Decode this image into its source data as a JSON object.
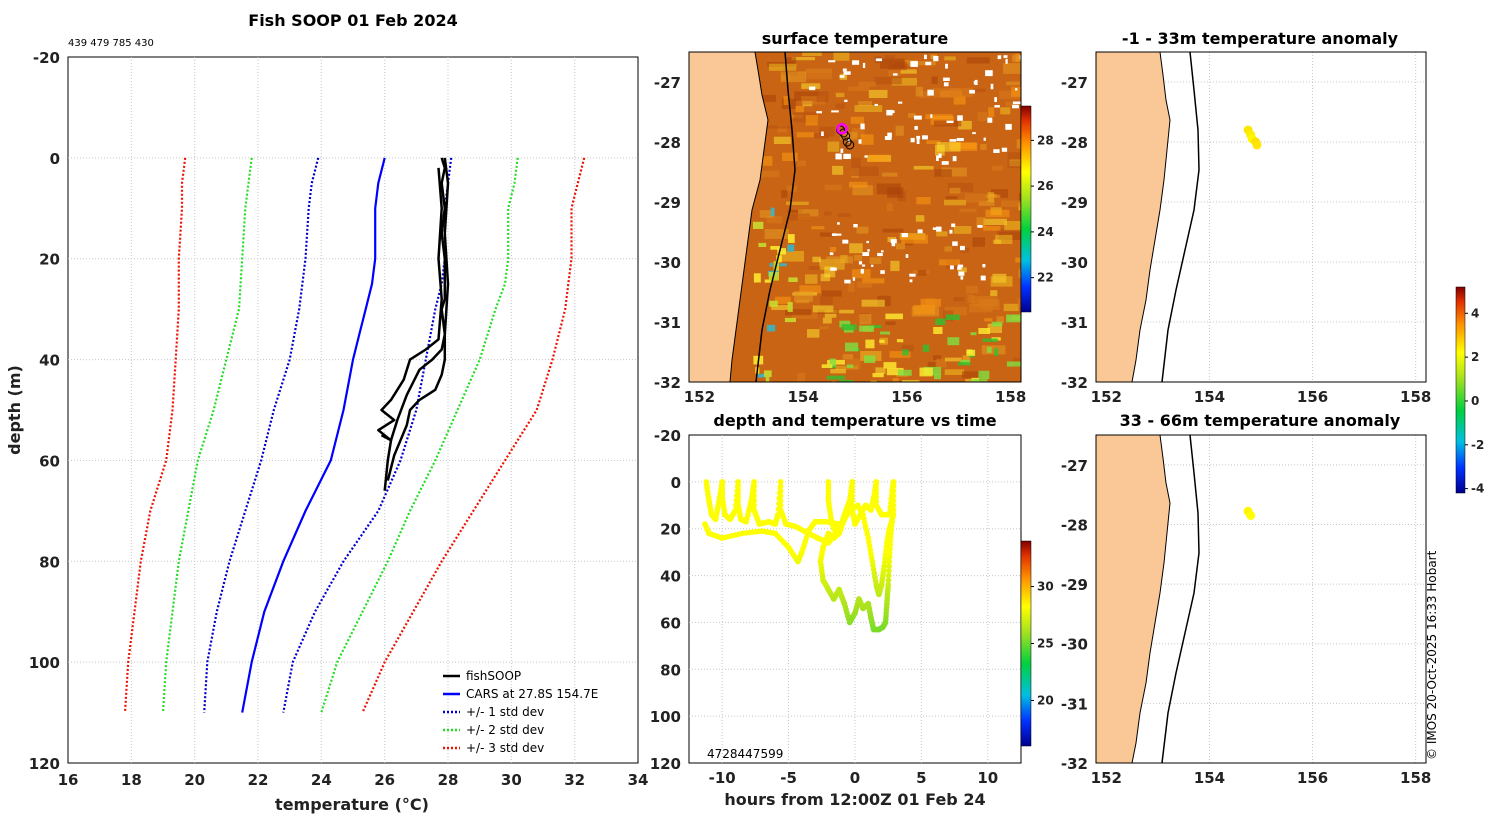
{
  "figure_title": "Fish SOOP 01 Feb 2024",
  "id_line": "439 479 785 430",
  "copyright": "© IMOS 20-Oct-2025 16:33 Hobart",
  "colors": {
    "land": "#fac896",
    "fishsoop": "#000000",
    "cars": "#0000ff",
    "std1": "#0000cc",
    "std2": "#22dd22",
    "std3": "#ee1100",
    "sst_base": "#c86414"
  },
  "chart_data": [
    {
      "id": "profile",
      "type": "line",
      "xlabel": "temperature (°C)",
      "ylabel": "depth (m)",
      "xlim": [
        16,
        34
      ],
      "ylim": [
        120,
        -20
      ],
      "xticks": [
        "16",
        "18",
        "20",
        "22",
        "24",
        "26",
        "28",
        "30",
        "32",
        "34"
      ],
      "yticks": [
        "-20",
        "0",
        "20",
        "40",
        "60",
        "80",
        "100",
        "120"
      ],
      "legend": [
        "fishSOOP",
        "CARS at 27.8S 154.7E",
        "+/- 1 std dev",
        "+/- 2 std dev",
        "+/- 3 std dev"
      ],
      "cars_mean": [
        [
          26.0,
          0
        ],
        [
          25.8,
          5
        ],
        [
          25.7,
          10
        ],
        [
          25.7,
          20
        ],
        [
          25.6,
          25
        ],
        [
          25.4,
          30
        ],
        [
          25.2,
          35
        ],
        [
          25.0,
          40
        ],
        [
          24.7,
          50
        ],
        [
          24.3,
          60
        ],
        [
          23.5,
          70
        ],
        [
          22.8,
          80
        ],
        [
          22.2,
          90
        ],
        [
          21.8,
          100
        ],
        [
          21.5,
          110
        ]
      ],
      "std1_minus": [
        [
          23.9,
          0
        ],
        [
          23.7,
          5
        ],
        [
          23.6,
          10
        ],
        [
          23.5,
          20
        ],
        [
          23.3,
          30
        ],
        [
          23.0,
          40
        ],
        [
          22.5,
          50
        ],
        [
          22.1,
          60
        ],
        [
          21.6,
          70
        ],
        [
          21.1,
          80
        ],
        [
          20.7,
          90
        ],
        [
          20.4,
          100
        ],
        [
          20.3,
          110
        ]
      ],
      "std1_plus": [
        [
          28.1,
          0
        ],
        [
          28.0,
          5
        ],
        [
          27.9,
          10
        ],
        [
          27.9,
          20
        ],
        [
          27.8,
          25
        ],
        [
          27.6,
          30
        ],
        [
          27.3,
          40
        ],
        [
          27.0,
          50
        ],
        [
          26.5,
          60
        ],
        [
          25.8,
          70
        ],
        [
          24.7,
          80
        ],
        [
          23.8,
          90
        ],
        [
          23.1,
          100
        ],
        [
          22.8,
          110
        ]
      ],
      "std2_minus": [
        [
          21.8,
          0
        ],
        [
          21.7,
          5
        ],
        [
          21.6,
          10
        ],
        [
          21.5,
          20
        ],
        [
          21.4,
          30
        ],
        [
          21.0,
          40
        ],
        [
          20.6,
          50
        ],
        [
          20.1,
          60
        ],
        [
          19.8,
          70
        ],
        [
          19.5,
          80
        ],
        [
          19.3,
          90
        ],
        [
          19.1,
          100
        ],
        [
          19.0,
          110
        ]
      ],
      "std2_plus": [
        [
          30.2,
          0
        ],
        [
          30.1,
          5
        ],
        [
          29.9,
          10
        ],
        [
          29.9,
          20
        ],
        [
          29.8,
          25
        ],
        [
          29.5,
          30
        ],
        [
          29.0,
          40
        ],
        [
          28.3,
          50
        ],
        [
          27.6,
          60
        ],
        [
          26.8,
          70
        ],
        [
          26.1,
          80
        ],
        [
          25.3,
          90
        ],
        [
          24.5,
          100
        ],
        [
          24.0,
          110
        ]
      ],
      "std3_minus": [
        [
          19.7,
          0
        ],
        [
          19.6,
          5
        ],
        [
          19.6,
          10
        ],
        [
          19.5,
          20
        ],
        [
          19.5,
          30
        ],
        [
          19.4,
          40
        ],
        [
          19.3,
          50
        ],
        [
          19.1,
          60
        ],
        [
          18.6,
          70
        ],
        [
          18.3,
          80
        ],
        [
          18.1,
          90
        ],
        [
          17.9,
          100
        ],
        [
          17.8,
          110
        ]
      ],
      "std3_plus": [
        [
          32.3,
          0
        ],
        [
          32.1,
          5
        ],
        [
          31.9,
          10
        ],
        [
          31.9,
          20
        ],
        [
          31.8,
          25
        ],
        [
          31.7,
          30
        ],
        [
          31.3,
          40
        ],
        [
          30.8,
          50
        ],
        [
          29.8,
          60
        ],
        [
          28.8,
          70
        ],
        [
          27.8,
          80
        ],
        [
          26.9,
          90
        ],
        [
          26.0,
          100
        ],
        [
          25.3,
          110
        ]
      ],
      "fishsoop_a": [
        [
          27.8,
          0
        ],
        [
          27.9,
          2
        ],
        [
          27.8,
          5
        ],
        [
          27.9,
          10
        ],
        [
          27.8,
          15
        ],
        [
          27.9,
          20
        ],
        [
          27.9,
          28
        ],
        [
          27.8,
          30
        ],
        [
          27.9,
          35
        ],
        [
          27.8,
          38
        ],
        [
          27.5,
          40
        ],
        [
          27.1,
          42
        ],
        [
          26.7,
          47
        ],
        [
          26.4,
          52
        ],
        [
          26.2,
          56
        ],
        [
          26.1,
          60
        ],
        [
          26.0,
          66
        ]
      ],
      "fishsoop_b": [
        [
          27.9,
          0
        ],
        [
          28.0,
          5
        ],
        [
          27.9,
          15
        ],
        [
          28.0,
          25
        ],
        [
          27.9,
          35
        ],
        [
          27.9,
          40
        ],
        [
          27.8,
          43
        ],
        [
          27.6,
          46
        ],
        [
          27.1,
          48
        ],
        [
          26.8,
          50
        ],
        [
          26.7,
          53
        ],
        [
          26.5,
          56
        ],
        [
          26.3,
          59
        ],
        [
          26.1,
          64
        ]
      ],
      "fishsoop_c": [
        [
          27.7,
          2
        ],
        [
          27.8,
          10
        ],
        [
          27.7,
          20
        ],
        [
          27.8,
          28
        ],
        [
          27.7,
          36
        ],
        [
          27.3,
          38
        ],
        [
          26.8,
          40
        ],
        [
          26.6,
          44
        ],
        [
          26.2,
          48
        ],
        [
          25.9,
          50
        ],
        [
          26.3,
          52
        ],
        [
          25.8,
          54
        ],
        [
          26.2,
          56
        ],
        [
          25.9,
          55
        ]
      ]
    },
    {
      "id": "sst_map",
      "type": "heatmap",
      "title": "surface temperature",
      "xlim": [
        151.8,
        158.2
      ],
      "ylim": [
        -32,
        -26.5
      ],
      "xticks": [
        "152",
        "154",
        "156",
        "158"
      ],
      "yticks": [
        "-27",
        "-28",
        "-29",
        "-30",
        "-31",
        "-32"
      ],
      "colorbar_range": [
        20.5,
        29.5
      ],
      "colorbar_ticks": [
        "22",
        "24",
        "26",
        "28"
      ],
      "magenta_position": [
        154.75,
        -27.78
      ],
      "track": [
        [
          154.72,
          -27.8
        ],
        [
          154.78,
          -27.85
        ],
        [
          154.82,
          -27.9
        ],
        [
          154.85,
          -28.0
        ],
        [
          154.9,
          -28.05
        ]
      ]
    },
    {
      "id": "depth_time",
      "type": "scatter",
      "title": "depth and temperature vs time",
      "xlabel": "hours from 12:00Z 01 Feb 24",
      "xlim": [
        -12.5,
        12.5
      ],
      "ylim": [
        120,
        -20
      ],
      "xticks": [
        "-10",
        "-5",
        "0",
        "5",
        "10"
      ],
      "yticks": [
        "-20",
        "0",
        "20",
        "40",
        "60",
        "80",
        "100",
        "120"
      ],
      "colorbar_range": [
        16,
        34
      ],
      "colorbar_ticks": [
        "20",
        "25",
        "30"
      ],
      "overlap_label": "4728447599",
      "trace": [
        [
          -11.2,
          0
        ],
        [
          -11.0,
          8
        ],
        [
          -10.8,
          14
        ],
        [
          -10.5,
          16
        ],
        [
          -10.3,
          10
        ],
        [
          -10.0,
          0
        ],
        [
          -10.0,
          6
        ],
        [
          -9.8,
          14
        ],
        [
          -9.4,
          16
        ],
        [
          -9.0,
          12
        ],
        [
          -8.8,
          0
        ],
        [
          -8.8,
          10
        ],
        [
          -8.6,
          16
        ],
        [
          -8.2,
          17
        ],
        [
          -7.8,
          8
        ],
        [
          -7.6,
          0
        ],
        [
          -7.6,
          12
        ],
        [
          -7.2,
          18
        ],
        [
          -6.5,
          17
        ],
        [
          -6.0,
          18
        ],
        [
          -5.8,
          14
        ],
        [
          -5.6,
          0
        ],
        [
          -5.6,
          12
        ],
        [
          -5.2,
          18
        ],
        [
          -4.5,
          19
        ],
        [
          -3.5,
          22
        ],
        [
          -2.8,
          24
        ],
        [
          -2.0,
          26
        ],
        [
          -1.5,
          22
        ],
        [
          -1.2,
          18
        ],
        [
          -2.2,
          17
        ],
        [
          -3.0,
          17
        ],
        [
          -3.5,
          21
        ],
        [
          -4.0,
          30
        ],
        [
          -4.3,
          34
        ],
        [
          -5.0,
          28
        ],
        [
          -6.0,
          22
        ],
        [
          -7.0,
          21
        ],
        [
          -8.5,
          22
        ],
        [
          -10.0,
          24
        ],
        [
          -11.0,
          22
        ],
        [
          -11.3,
          18
        ]
      ],
      "trace2": [
        [
          -2.0,
          0
        ],
        [
          -2.0,
          8
        ],
        [
          -1.8,
          16
        ],
        [
          -1.6,
          20
        ],
        [
          -1.0,
          18
        ],
        [
          -0.8,
          14
        ],
        [
          -0.4,
          8
        ],
        [
          -0.2,
          0
        ],
        [
          -0.2,
          12
        ],
        [
          0.0,
          18
        ],
        [
          0.4,
          14
        ],
        [
          0.8,
          10
        ],
        [
          1.2,
          12
        ],
        [
          1.5,
          4
        ],
        [
          1.6,
          0
        ],
        [
          1.6,
          10
        ],
        [
          2.0,
          14
        ],
        [
          2.6,
          14
        ],
        [
          2.8,
          4
        ],
        [
          2.9,
          0
        ],
        [
          2.9,
          12
        ],
        [
          2.7,
          22
        ],
        [
          2.6,
          32
        ],
        [
          2.5,
          44
        ],
        [
          2.4,
          52
        ],
        [
          2.3,
          60
        ],
        [
          2.1,
          62
        ],
        [
          1.8,
          63
        ],
        [
          1.4,
          63
        ],
        [
          1.2,
          58
        ],
        [
          1.0,
          52
        ],
        [
          0.6,
          54
        ],
        [
          0.3,
          50
        ],
        [
          0.0,
          56
        ],
        [
          -0.4,
          60
        ],
        [
          -0.8,
          52
        ],
        [
          -1.2,
          46
        ],
        [
          -1.6,
          50
        ],
        [
          -2.0,
          46
        ],
        [
          -2.4,
          42
        ],
        [
          -2.6,
          34
        ],
        [
          -2.4,
          28
        ],
        [
          -2.0,
          22
        ],
        [
          -1.6,
          24
        ],
        [
          -1.2,
          22
        ],
        [
          -0.8,
          16
        ],
        [
          -0.4,
          12
        ],
        [
          0.2,
          10
        ],
        [
          0.6,
          14
        ],
        [
          1.0,
          24
        ],
        [
          1.3,
          34
        ],
        [
          1.6,
          44
        ],
        [
          1.8,
          48
        ],
        [
          2.0,
          44
        ],
        [
          2.2,
          36
        ],
        [
          2.4,
          26
        ],
        [
          2.6,
          20
        ],
        [
          2.9,
          14
        ]
      ]
    },
    {
      "id": "anomaly_shallow",
      "type": "scatter",
      "title": "-1 - 33m temperature anomaly",
      "xlim": [
        151.8,
        158.2
      ],
      "ylim": [
        -32,
        -26.5
      ],
      "xticks": [
        "152",
        "154",
        "156",
        "158"
      ],
      "yticks": [
        "-27",
        "-28",
        "-29",
        "-30",
        "-31",
        "-32"
      ],
      "points": [
        [
          154.75,
          -27.8,
          2.5
        ],
        [
          154.8,
          -27.88,
          2.4
        ],
        [
          154.83,
          -27.95,
          2.3
        ],
        [
          154.9,
          -28.0,
          2.6
        ],
        [
          154.92,
          -28.05,
          2.5
        ]
      ]
    },
    {
      "id": "anomaly_deep",
      "type": "scatter",
      "title": "33 - 66m temperature anomaly",
      "xlim": [
        151.8,
        158.2
      ],
      "ylim": [
        -32,
        -26.5
      ],
      "xticks": [
        "152",
        "154",
        "156",
        "158"
      ],
      "yticks": [
        "-27",
        "-28",
        "-29",
        "-30",
        "-31",
        "-32"
      ],
      "points": [
        [
          154.75,
          -27.78,
          2.3
        ],
        [
          154.8,
          -27.85,
          2.2
        ]
      ],
      "colorbar_range": [
        -4.2,
        5.2
      ],
      "colorbar_ticks": [
        "4",
        "2",
        "0",
        "-2",
        "-4"
      ]
    }
  ]
}
